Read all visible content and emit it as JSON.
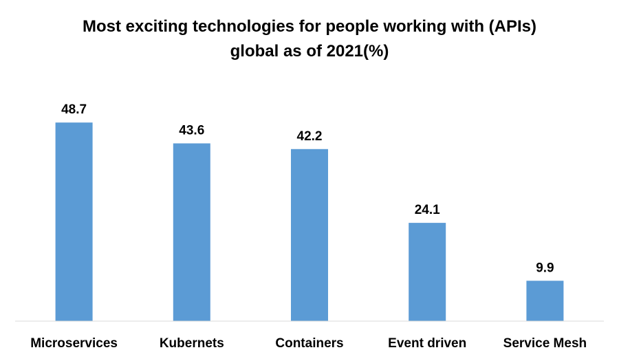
{
  "chart_data": {
    "type": "bar",
    "title": "Most exciting technologies for people working with (APIs) global as of 2021(%)",
    "title_lines": [
      "Most exciting technologies for people working with (APIs)",
      "global as of 2021(%)"
    ],
    "categories": [
      "Microservices",
      "Kubernets",
      "Containers",
      "Event driven",
      "Service Mesh"
    ],
    "values": [
      48.7,
      43.6,
      42.2,
      24.1,
      9.9
    ],
    "value_labels": [
      "48.7",
      "43.6",
      "42.2",
      "24.1",
      "9.9"
    ],
    "xlabel": "",
    "ylabel": "",
    "ylim": [
      0,
      50
    ],
    "grid": false,
    "legend": "none",
    "bar_color": "#5b9bd5",
    "axis_color": "#d9d9d9"
  }
}
